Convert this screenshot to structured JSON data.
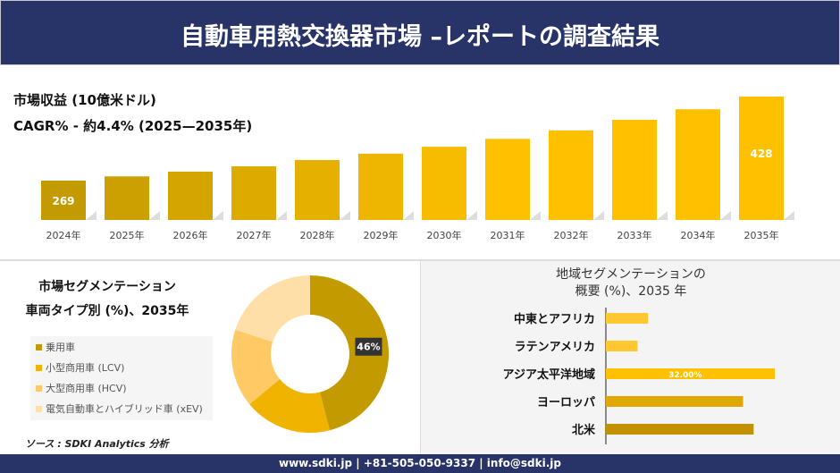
{
  "header": {
    "title": "自動車用熱交換器市場 –レポートの調査結果"
  },
  "colors": {
    "navy": "#283468",
    "accent": "#ffc000"
  },
  "chart_data": [
    {
      "type": "bar",
      "title": "市場収益 (10億米ドル)",
      "subtitle": "CAGR% - 約4.4% (2025—2035年)",
      "categories": [
        "2024年",
        "2025年",
        "2026年",
        "2027年",
        "2028年",
        "2029年",
        "2030年",
        "2031年",
        "2032年",
        "2033年",
        "2034年",
        "2035年"
      ],
      "values": [
        269,
        277,
        286,
        296,
        308,
        320,
        333,
        348,
        364,
        384,
        404,
        428
      ],
      "data_labels": {
        "0": "269",
        "11": "428"
      }
    },
    {
      "type": "pie",
      "donut": true,
      "title": "市場セグメンテーション",
      "subtitle": "車両タイプ別 (%)、2035年",
      "categories": [
        "乗用車",
        "小型商用車 (LCV)",
        "大型商用車 (HCV)",
        "電気自動車とハイブリッド車 (xEV)"
      ],
      "values": [
        46,
        18,
        16,
        20
      ],
      "colors": [
        "#c39a00",
        "#f0b400",
        "#ffc966",
        "#ffdfa8"
      ],
      "data_labels": {
        "0": "46%"
      },
      "legend": "left"
    },
    {
      "type": "bar",
      "orientation": "horizontal",
      "title": "地域セグメンテーションの",
      "subtitle": "概要 (%)、2035 年",
      "categories": [
        "中東とアフリカ",
        "ラテンアメリカ",
        "アジア太平洋地域",
        "ヨーロッパ",
        "北米"
      ],
      "values": [
        8,
        6,
        32,
        26,
        28
      ],
      "colors": [
        "#ffc832",
        "#ffc832",
        "#ffc000",
        "#e0a800",
        "#c39100"
      ],
      "data_labels": {
        "2": "32.00%"
      }
    }
  ],
  "source": "ソース : SDKI Analytics 分析",
  "footer": "www.sdki.jp | +81-505-050-9337 | info@sdki.jp"
}
